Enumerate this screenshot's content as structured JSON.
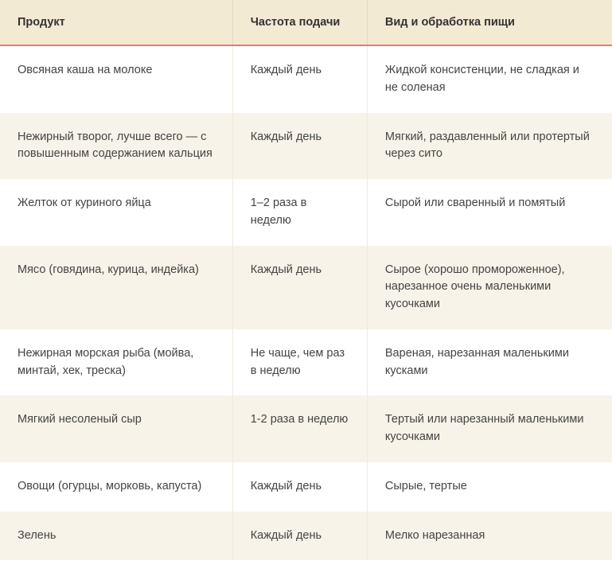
{
  "table": {
    "type": "table",
    "header_bg": "#f3ead3",
    "separator_color": "#e67a6e",
    "row_alt_bg": "#f7f3e8",
    "text_color": "#444444",
    "header_text_color": "#333333",
    "font_size": 14.5,
    "columns": [
      {
        "label": "Продукт",
        "width": "38%"
      },
      {
        "label": "Частота подачи",
        "width": "22%"
      },
      {
        "label": "Вид и обработка пищи",
        "width": "40%"
      }
    ],
    "rows": [
      {
        "product": "Овсяная каша на молоке",
        "freq": "Каждый день",
        "prep": "Жидкой консистенции, не сладкая и не соленая"
      },
      {
        "product": "Нежирный творог, лучше всего — с повышенным содержанием кальция",
        "freq": "Каждый день",
        "prep": "Мягкий, раздавленный или протертый через сито"
      },
      {
        "product": "Желток от куриного яйца",
        "freq": "1–2 раза в неделю",
        "prep": "Сырой или сваренный и помятый"
      },
      {
        "product": "Мясо (говядина, курица, индейка)",
        "freq": "Каждый день",
        "prep": "Сырое (хорошо промороженное), нарезанное очень маленькими кусочками"
      },
      {
        "product": "Нежирная морская рыба (мойва, минтай, хек, треска)",
        "freq": "Не чаще, чем раз в неделю",
        "prep": "Вареная, нарезанная маленькими кусками"
      },
      {
        "product": "Мягкий несоленый сыр",
        "freq": "1-2 раза в неделю",
        "prep": "Тертый или нарезанный маленькими кусочками"
      },
      {
        "product": "Овощи (огурцы, морковь, капуста)",
        "freq": "Каждый день",
        "prep": "Сырые, тертые"
      },
      {
        "product": "Зелень",
        "freq": "Каждый день",
        "prep": "Мелко нарезанная"
      }
    ]
  }
}
